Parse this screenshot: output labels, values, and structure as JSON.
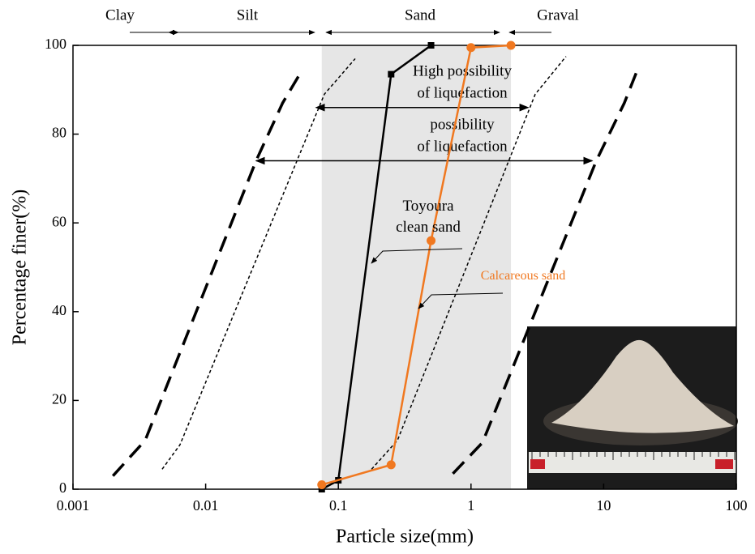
{
  "chart_data": {
    "type": "line",
    "xscale": "log",
    "x_label": "Particle size(mm)",
    "y_label": "Percentage finer(%)",
    "xlim": [
      0.001,
      100
    ],
    "xticks": [
      0.001,
      0.01,
      0.1,
      1,
      10,
      100
    ],
    "ylim": [
      0,
      100
    ],
    "yticks": [
      0,
      20,
      40,
      60,
      80,
      100
    ],
    "zones": [
      "Clay",
      "Silt",
      "Sand",
      "Graval"
    ],
    "shaded_range": [
      0.075,
      2
    ],
    "shade_color": "#e6e6e6",
    "series": [
      {
        "name_lines": [
          "Toyoura",
          "clean sand"
        ],
        "color": "#000000",
        "marker": "square",
        "x": [
          0.075,
          0.1,
          0.25,
          0.5
        ],
        "values": [
          0,
          2,
          93.5,
          100
        ]
      },
      {
        "name_lines": [
          "Calcareous sand"
        ],
        "color": "#f07820",
        "marker": "circle",
        "x": [
          0.075,
          0.25,
          0.5,
          1,
          2
        ],
        "values": [
          1,
          5.5,
          56,
          99.5,
          100
        ]
      }
    ],
    "boundaries": [
      {
        "style": "dashed",
        "x": [
          0.002,
          0.0035,
          0.024,
          0.038,
          0.05
        ],
        "values": [
          3,
          11,
          74,
          87,
          93
        ]
      },
      {
        "style": "dashed",
        "x": [
          0.73,
          1.22,
          8.8,
          14.3,
          17.7
        ],
        "values": [
          3.5,
          10.5,
          74,
          87,
          94
        ]
      },
      {
        "style": "dotted",
        "x": [
          0.0047,
          0.0064,
          0.0785,
          0.134
        ],
        "values": [
          4.5,
          10,
          89,
          97
        ]
      },
      {
        "style": "dotted",
        "x": [
          0.178,
          0.279,
          3.05,
          5.2
        ],
        "values": [
          4.5,
          11,
          89,
          97.5
        ]
      }
    ],
    "ranges": [
      {
        "lines": [
          "High possibility",
          "of liquefaction"
        ],
        "x": [
          0.068,
          2.7
        ],
        "y": 86
      },
      {
        "lines": [
          "possibility",
          "of liquefaction"
        ],
        "x": [
          0.024,
          8.2
        ],
        "y": 74
      }
    ]
  }
}
